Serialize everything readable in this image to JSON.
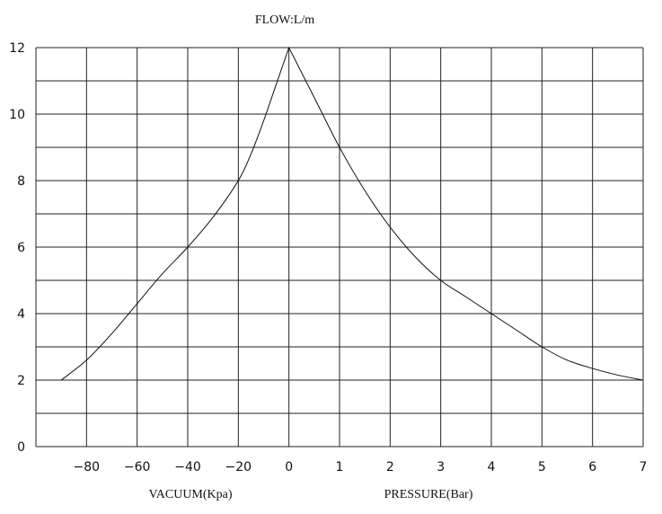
{
  "chart_data": {
    "type": "line",
    "title": "FLOW:L/m",
    "ylabel": "FLOW:L/m",
    "ylim": [
      0,
      12
    ],
    "y_ticks": [
      "0",
      "2",
      "4",
      "6",
      "8",
      "10",
      "12"
    ],
    "x_ticks": [
      "-80",
      "-60",
      "-40",
      "-20",
      "0",
      "1",
      "2",
      "3",
      "4",
      "5",
      "6",
      "7"
    ],
    "xlabel_left": "VACUUM(Kpa)",
    "xlabel_right": "PRESSURE(Bar)",
    "grid": true,
    "x_axis_note": "left half is vacuum in Kpa (-80..0), right half is pressure in Bar (0..7)",
    "series": [
      {
        "values_vacuum_kpa": {
          "x": [
            -90,
            -80,
            -70,
            -60,
            -50,
            -40,
            -30,
            -20,
            -15,
            -10,
            -5,
            0
          ],
          "y": [
            2.0,
            2.6,
            3.4,
            4.3,
            5.2,
            6.0,
            6.9,
            8.0,
            8.8,
            9.8,
            10.9,
            12.0
          ]
        },
        "values_pressure_bar": {
          "x": [
            0,
            0.5,
            1,
            1.5,
            2,
            2.5,
            3,
            3.5,
            4,
            4.5,
            5,
            5.5,
            6,
            6.5,
            7
          ],
          "y": [
            12.0,
            10.5,
            9.0,
            7.7,
            6.6,
            5.7,
            5.0,
            4.5,
            4.0,
            3.5,
            3.0,
            2.6,
            2.35,
            2.15,
            2.0
          ]
        }
      }
    ]
  }
}
